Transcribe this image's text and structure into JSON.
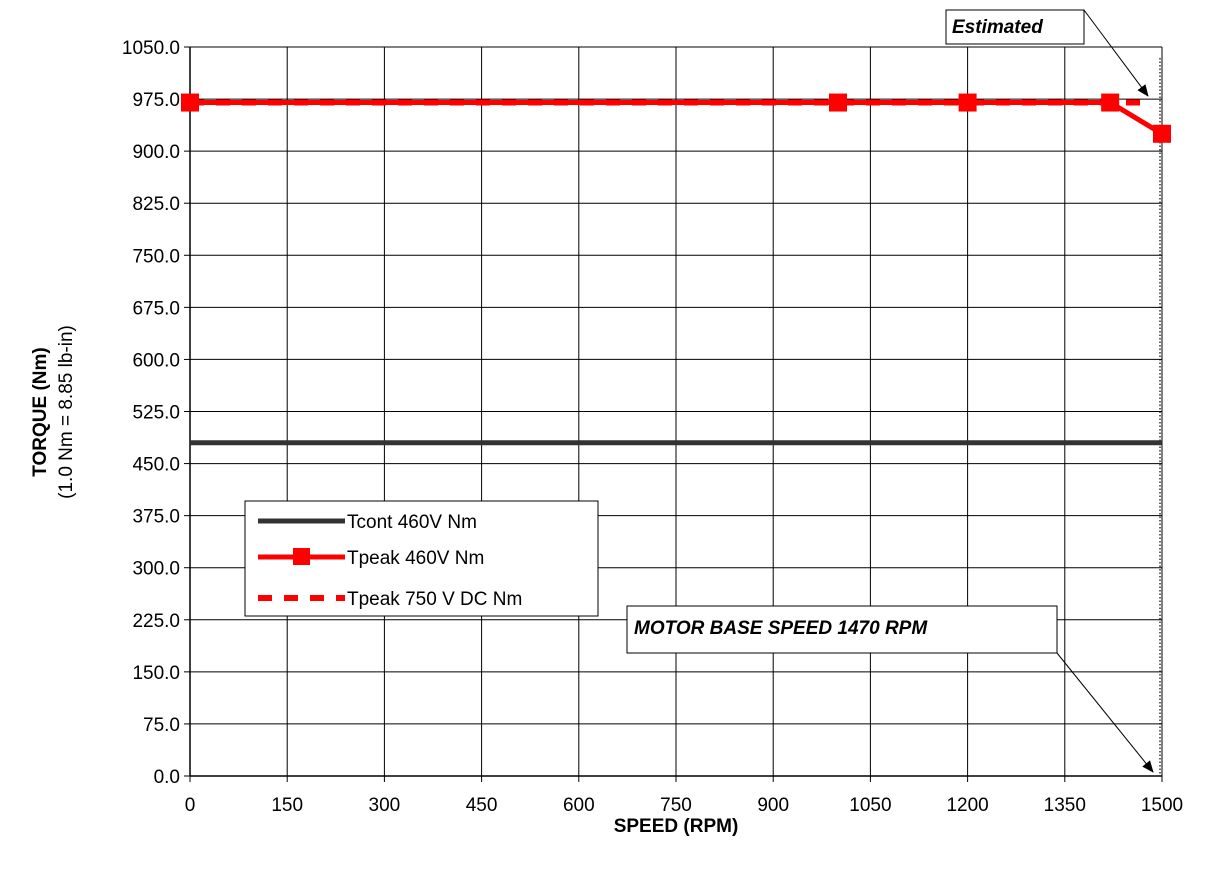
{
  "chart_data": {
    "type": "line",
    "xlabel": "SPEED (RPM)",
    "ylabel": "TORQUE (Nm)",
    "ylabel_sub": "(1.0 Nm = 8.85 lb-in)",
    "xlim": [
      0,
      1500
    ],
    "ylim": [
      0,
      1050
    ],
    "x_ticks": [
      0,
      150,
      300,
      450,
      600,
      750,
      900,
      1050,
      1200,
      1350,
      1500
    ],
    "y_ticks": [
      0,
      75,
      150,
      225,
      300,
      375,
      450,
      525,
      600,
      675,
      750,
      825,
      900,
      975,
      1050
    ],
    "x_tick_labels": [
      "0",
      "150",
      "300",
      "450",
      "600",
      "750",
      "900",
      "1050",
      "1200",
      "1350",
      "1500"
    ],
    "y_tick_labels": [
      "0.0",
      "75.0",
      "150.0",
      "225.0",
      "300.0",
      "375.0",
      "450.0",
      "525.0",
      "600.0",
      "675.0",
      "750.0",
      "825.0",
      "900.0",
      "975.0",
      "1050.0"
    ],
    "grid": true,
    "legend_position": "middle-left",
    "series": [
      {
        "name": "Tcont 460V Nm",
        "color": "#333333",
        "style": "solid",
        "marker": "none",
        "x": [
          0,
          1500
        ],
        "y": [
          480,
          480
        ]
      },
      {
        "name": "Tpeak 460V Nm",
        "color": "#ff0000",
        "style": "solid",
        "marker": "square",
        "x": [
          0,
          1000,
          1200,
          1420,
          1500
        ],
        "y": [
          970,
          970,
          970,
          970,
          925
        ]
      },
      {
        "name": "Tpeak 750 V DC Nm",
        "color": "#ff0000",
        "style": "dashed",
        "marker": "none",
        "x": [
          0,
          1470
        ],
        "y": [
          970,
          970
        ]
      }
    ],
    "reference_line": {
      "x": 1500,
      "style": "dotted",
      "color": "#000000"
    },
    "annotations": [
      {
        "text": "Estimated",
        "arrow_to": {
          "x": 1470,
          "y": 970
        }
      },
      {
        "text": "MOTOR BASE SPEED  1470 RPM",
        "arrow_to": {
          "x": 1490,
          "y": 0
        }
      }
    ]
  }
}
